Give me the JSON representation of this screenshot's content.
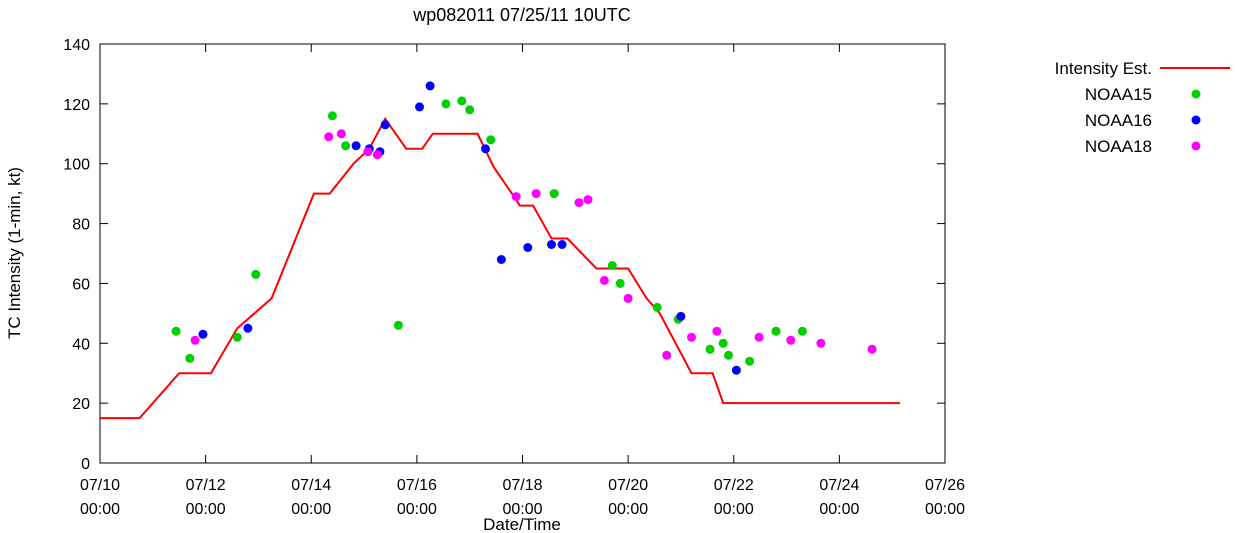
{
  "chart_data": {
    "type": "line+scatter",
    "title": "wp082011 07/25/11 10UTC",
    "xlabel": "Date/Time",
    "ylabel": "TC Intensity (1-min, kt)",
    "x_unit": "days since 07/10 00:00 UTC",
    "xlim_days": [
      0,
      16
    ],
    "ylim": [
      0,
      140
    ],
    "yticks": [
      0,
      20,
      40,
      60,
      80,
      100,
      120,
      140
    ],
    "xticks": [
      {
        "day": 0,
        "label": [
          "07/10",
          "00:00"
        ]
      },
      {
        "day": 2,
        "label": [
          "07/12",
          "00:00"
        ]
      },
      {
        "day": 4,
        "label": [
          "07/14",
          "00:00"
        ]
      },
      {
        "day": 6,
        "label": [
          "07/16",
          "00:00"
        ]
      },
      {
        "day": 8,
        "label": [
          "07/18",
          "00:00"
        ]
      },
      {
        "day": 10,
        "label": [
          "07/20",
          "00:00"
        ]
      },
      {
        "day": 12,
        "label": [
          "07/22",
          "00:00"
        ]
      },
      {
        "day": 14,
        "label": [
          "07/24",
          "00:00"
        ]
      },
      {
        "day": 16,
        "label": [
          "07/26",
          "00:00"
        ]
      }
    ],
    "grid": false,
    "legend_position": "outside-top-right",
    "series": [
      {
        "name": "Intensity Est.",
        "type": "line",
        "color": "#ff0000",
        "points": [
          [
            0,
            15
          ],
          [
            0.75,
            15
          ],
          [
            1.5,
            30
          ],
          [
            2.1,
            30
          ],
          [
            2.6,
            45
          ],
          [
            3.25,
            55
          ],
          [
            4.05,
            90
          ],
          [
            4.35,
            90
          ],
          [
            4.8,
            100
          ],
          [
            5.1,
            105
          ],
          [
            5.4,
            115
          ],
          [
            5.8,
            105
          ],
          [
            6.1,
            105
          ],
          [
            6.3,
            110
          ],
          [
            7.15,
            110
          ],
          [
            7.45,
            99
          ],
          [
            7.8,
            90
          ],
          [
            7.95,
            86
          ],
          [
            8.2,
            86
          ],
          [
            8.55,
            75
          ],
          [
            8.85,
            75
          ],
          [
            9.4,
            65
          ],
          [
            10.0,
            65
          ],
          [
            10.35,
            55
          ],
          [
            10.6,
            50
          ],
          [
            11.2,
            30
          ],
          [
            11.6,
            30
          ],
          [
            11.8,
            20
          ],
          [
            15.15,
            20
          ]
        ]
      },
      {
        "name": "NOAA15",
        "type": "scatter",
        "color": "#00d000",
        "points": [
          [
            1.44,
            44
          ],
          [
            1.7,
            35
          ],
          [
            2.6,
            42
          ],
          [
            2.95,
            63
          ],
          [
            4.4,
            116
          ],
          [
            4.65,
            106
          ],
          [
            5.65,
            46
          ],
          [
            6.55,
            120
          ],
          [
            6.85,
            121
          ],
          [
            7.0,
            118
          ],
          [
            7.4,
            108
          ],
          [
            8.6,
            90
          ],
          [
            9.7,
            66
          ],
          [
            9.85,
            60
          ],
          [
            10.55,
            52
          ],
          [
            10.95,
            48
          ],
          [
            11.55,
            38
          ],
          [
            11.8,
            40
          ],
          [
            11.9,
            36
          ],
          [
            12.3,
            34
          ],
          [
            12.8,
            44
          ],
          [
            13.3,
            44
          ]
        ]
      },
      {
        "name": "NOAA16",
        "type": "scatter",
        "color": "#0000ff",
        "points": [
          [
            1.95,
            43
          ],
          [
            2.8,
            45
          ],
          [
            4.85,
            106
          ],
          [
            5.1,
            105
          ],
          [
            5.3,
            104
          ],
          [
            5.4,
            113
          ],
          [
            6.05,
            119
          ],
          [
            6.25,
            126
          ],
          [
            7.3,
            105
          ],
          [
            7.6,
            68
          ],
          [
            8.1,
            72
          ],
          [
            8.55,
            73
          ],
          [
            8.75,
            73
          ],
          [
            11.0,
            49
          ],
          [
            12.05,
            31
          ]
        ]
      },
      {
        "name": "NOAA18",
        "type": "scatter",
        "color": "#ff00ff",
        "points": [
          [
            1.8,
            41
          ],
          [
            4.33,
            109
          ],
          [
            4.57,
            110
          ],
          [
            5.07,
            104
          ],
          [
            5.25,
            103
          ],
          [
            7.88,
            89
          ],
          [
            8.26,
            90
          ],
          [
            9.07,
            87
          ],
          [
            9.24,
            88
          ],
          [
            9.55,
            61
          ],
          [
            10.0,
            55
          ],
          [
            10.73,
            36
          ],
          [
            11.2,
            42
          ],
          [
            11.68,
            44
          ],
          [
            12.48,
            42
          ],
          [
            13.08,
            41
          ],
          [
            13.65,
            40
          ],
          [
            14.62,
            38
          ]
        ]
      }
    ]
  }
}
